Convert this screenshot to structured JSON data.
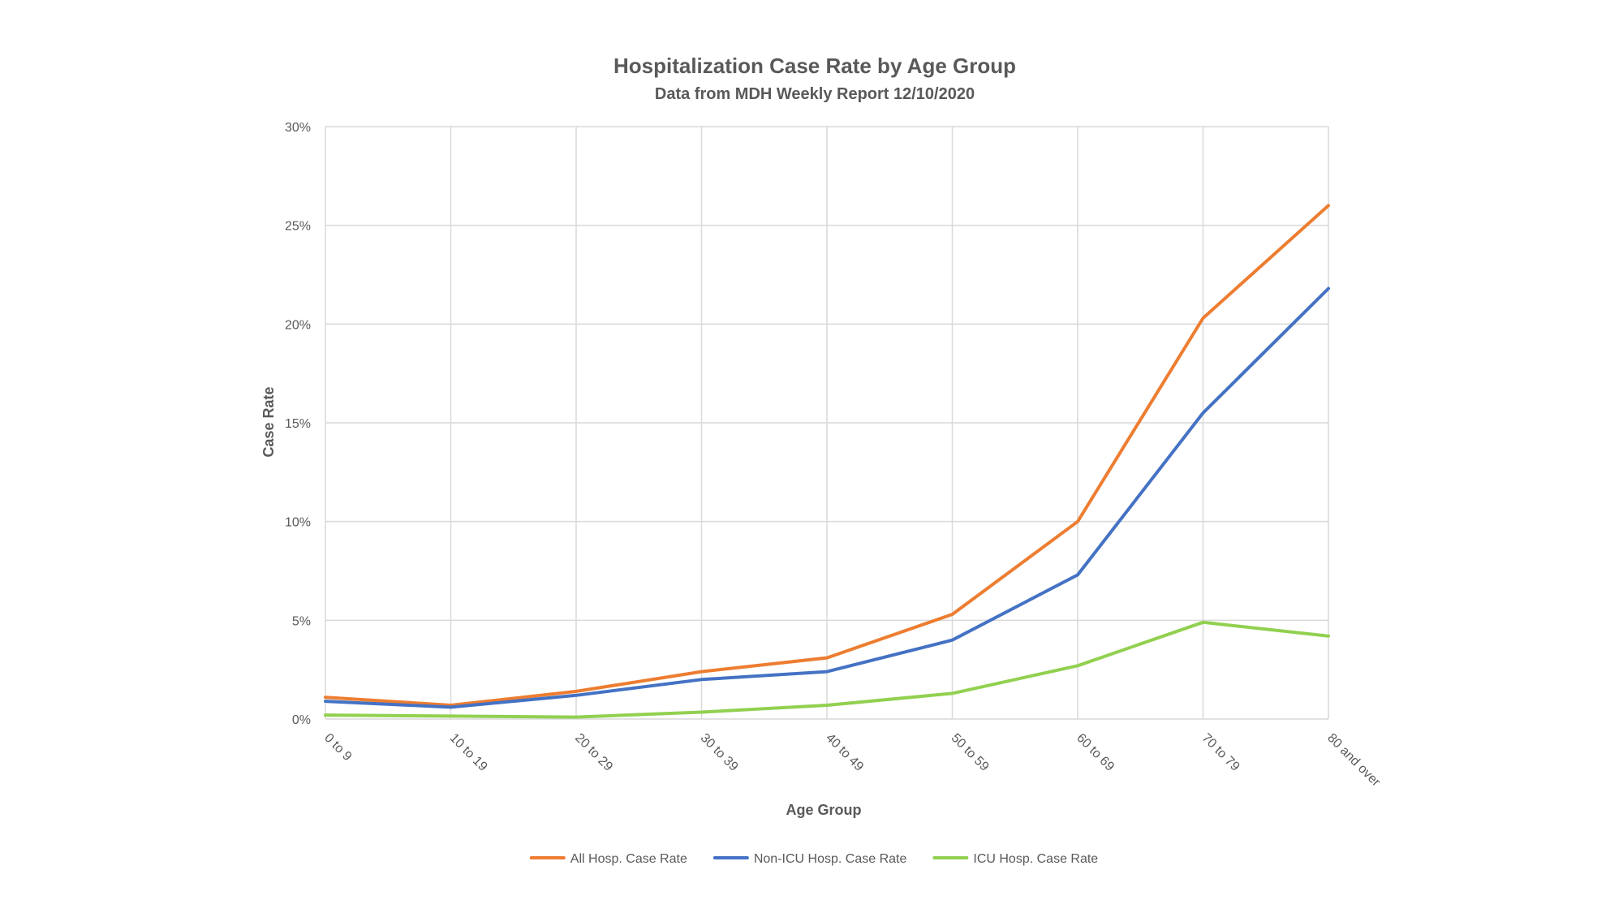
{
  "chart_data": {
    "type": "line",
    "title": "Hospitalization Case Rate by Age Group",
    "subtitle": "Data from MDH Weekly Report 12/10/2020",
    "xlabel": "Age Group",
    "ylabel": "Case Rate",
    "categories": [
      "0 to 9",
      "10 to 19",
      "20 to 29",
      "30 to 39",
      "40 to 49",
      "50 to 59",
      "60 to 69",
      "70 to 79",
      "80 and over"
    ],
    "ylim": [
      0,
      30
    ],
    "y_ticks": [
      0,
      5,
      10,
      15,
      20,
      25,
      30
    ],
    "y_tick_labels": [
      "0%",
      "5%",
      "10%",
      "15%",
      "20%",
      "25%",
      "30%"
    ],
    "grid": true,
    "legend_position": "bottom",
    "series": [
      {
        "name": "All Hosp. Case Rate",
        "color": "#ED7D31",
        "values": [
          1.1,
          0.7,
          1.4,
          2.4,
          3.1,
          5.3,
          10.0,
          20.3,
          26.0
        ]
      },
      {
        "name": "Non-ICU Hosp. Case Rate",
        "color": "#4472C4",
        "values": [
          0.9,
          0.6,
          1.2,
          2.0,
          2.4,
          4.0,
          7.3,
          15.5,
          21.8
        ]
      },
      {
        "name": "ICU Hosp. Case Rate",
        "color": "#92D050",
        "values": [
          0.2,
          0.15,
          0.1,
          0.35,
          0.7,
          1.3,
          2.7,
          4.9,
          4.2
        ]
      }
    ]
  }
}
